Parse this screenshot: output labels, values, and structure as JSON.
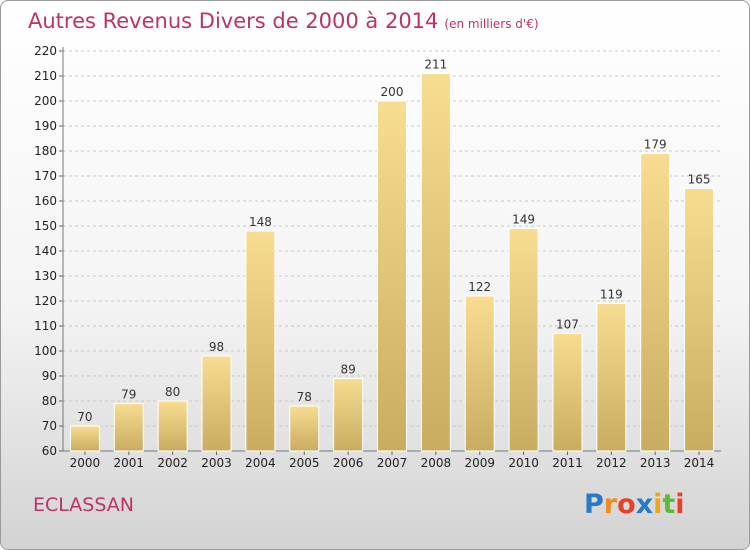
{
  "title": "Autres Revenus Divers de 2000 à 2014",
  "title_unit": "(en milliers d'€)",
  "place": "ECLASSAN",
  "logo": {
    "letters": [
      "P",
      "r",
      "o",
      "x",
      "i",
      "t",
      "i"
    ],
    "colors": [
      "#2a79c4",
      "#f08a1c",
      "#e8412b",
      "#2a79c4",
      "#f0a51c",
      "#5fb83a",
      "#e8412b"
    ]
  },
  "chart_data": {
    "type": "bar",
    "categories": [
      "2000",
      "2001",
      "2002",
      "2003",
      "2004",
      "2005",
      "2006",
      "2007",
      "2008",
      "2009",
      "2010",
      "2011",
      "2012",
      "2013",
      "2014"
    ],
    "values": [
      70,
      79,
      80,
      98,
      148,
      78,
      89,
      200,
      211,
      122,
      149,
      107,
      119,
      179,
      165
    ],
    "title": "Autres Revenus Divers de 2000 à 2014",
    "ylim": [
      60,
      220
    ],
    "yticks": [
      60,
      70,
      80,
      90,
      100,
      110,
      120,
      130,
      140,
      150,
      160,
      170,
      180,
      190,
      200,
      210,
      220
    ],
    "grid": "horizontal dashed",
    "bar_color": "#e3c576"
  }
}
